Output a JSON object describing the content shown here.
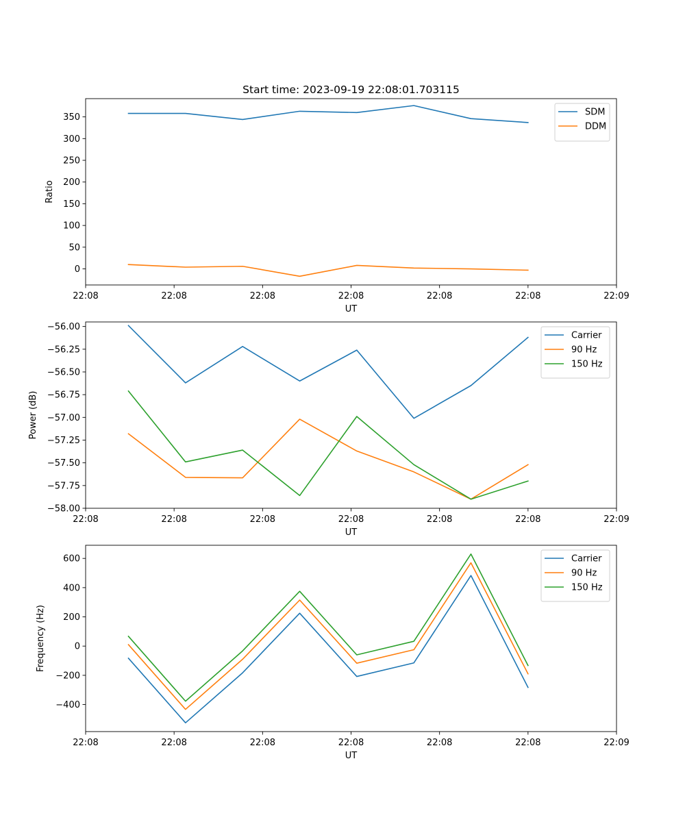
{
  "chart_data": [
    {
      "type": "line",
      "title": "Start time: 2023-09-19 22:08:01.703115",
      "xlabel": "UT",
      "ylabel": "Ratio",
      "xlim": [
        0,
        9.3
      ],
      "ylim": [
        -37,
        392
      ],
      "x_ticks": [
        0.0,
        1.55,
        3.1,
        4.65,
        6.2,
        7.75,
        9.3
      ],
      "x_tick_labels": [
        "22:08",
        "22:08",
        "22:08",
        "22:08",
        "22:08",
        "22:08",
        "22:09"
      ],
      "y_ticks": [
        0,
        50,
        100,
        150,
        200,
        250,
        300,
        350
      ],
      "y_tick_labels": [
        "0",
        "50",
        "100",
        "150",
        "200",
        "250",
        "300",
        "350"
      ],
      "x": [
        0.75,
        1.75,
        2.75,
        3.75,
        4.75,
        5.75,
        6.75,
        7.75
      ],
      "series": [
        {
          "name": "SDM",
          "color": "#1f77b4",
          "values": [
            358,
            358,
            344,
            363,
            360,
            376,
            346,
            337
          ]
        },
        {
          "name": "DDM",
          "color": "#ff7f0e",
          "values": [
            10,
            4,
            6,
            -17,
            8,
            2,
            0,
            -3
          ]
        }
      ],
      "legend": "top-right"
    },
    {
      "type": "line",
      "title": "",
      "xlabel": "UT",
      "ylabel": "Power (dB)",
      "xlim": [
        0,
        9.3
      ],
      "ylim": [
        -58.0,
        -55.95
      ],
      "x_ticks": [
        0.0,
        1.55,
        3.1,
        4.65,
        6.2,
        7.75,
        9.3
      ],
      "x_tick_labels": [
        "22:08",
        "22:08",
        "22:08",
        "22:08",
        "22:08",
        "22:08",
        "22:09"
      ],
      "y_ticks": [
        -58.0,
        -57.75,
        -57.5,
        -57.25,
        -57.0,
        -56.75,
        -56.5,
        -56.25,
        -56.0
      ],
      "y_tick_labels": [
        "−58.00",
        "−57.75",
        "−57.50",
        "−57.25",
        "−57.00",
        "−56.75",
        "−56.50",
        "−56.25",
        "−56.00"
      ],
      "x": [
        0.75,
        1.75,
        2.75,
        3.75,
        4.75,
        5.75,
        6.75,
        7.75
      ],
      "series": [
        {
          "name": "Carrier",
          "color": "#1f77b4",
          "values": [
            -55.99,
            -56.62,
            -56.22,
            -56.6,
            -56.26,
            -57.01,
            -56.65,
            -56.12
          ]
        },
        {
          "name": "90 Hz",
          "color": "#ff7f0e",
          "values": [
            -57.18,
            -57.66,
            -57.665,
            -57.02,
            -57.37,
            -57.6,
            -57.9,
            -57.52
          ]
        },
        {
          "name": "150 Hz",
          "color": "#2ca02c",
          "values": [
            -56.71,
            -57.49,
            -57.36,
            -57.86,
            -56.99,
            -57.52,
            -57.9,
            -57.7
          ]
        }
      ],
      "legend": "top-right"
    },
    {
      "type": "line",
      "title": "",
      "xlabel": "UT",
      "ylabel": "Frequency (Hz)",
      "xlim": [
        0,
        9.3
      ],
      "ylim": [
        -585,
        690
      ],
      "x_ticks": [
        0.0,
        1.55,
        3.1,
        4.65,
        6.2,
        7.75,
        9.3
      ],
      "x_tick_labels": [
        "22:08",
        "22:08",
        "22:08",
        "22:08",
        "22:08",
        "22:08",
        "22:09"
      ],
      "y_ticks": [
        -400,
        -200,
        0,
        200,
        400,
        600
      ],
      "y_tick_labels": [
        "−400",
        "−200",
        "0",
        "200",
        "400",
        "600"
      ],
      "x": [
        0.75,
        1.75,
        2.75,
        3.75,
        4.75,
        5.75,
        6.75,
        7.75
      ],
      "series": [
        {
          "name": "Carrier",
          "color": "#1f77b4",
          "values": [
            -83,
            -525,
            -183,
            225,
            -208,
            -115,
            483,
            -283
          ]
        },
        {
          "name": "90 Hz",
          "color": "#ff7f0e",
          "values": [
            10,
            -433,
            -90,
            315,
            -117,
            -25,
            570,
            -190
          ]
        },
        {
          "name": "150 Hz",
          "color": "#2ca02c",
          "values": [
            67,
            -377,
            -33,
            375,
            -60,
            33,
            630,
            -133
          ]
        }
      ],
      "legend": "top-right"
    }
  ]
}
